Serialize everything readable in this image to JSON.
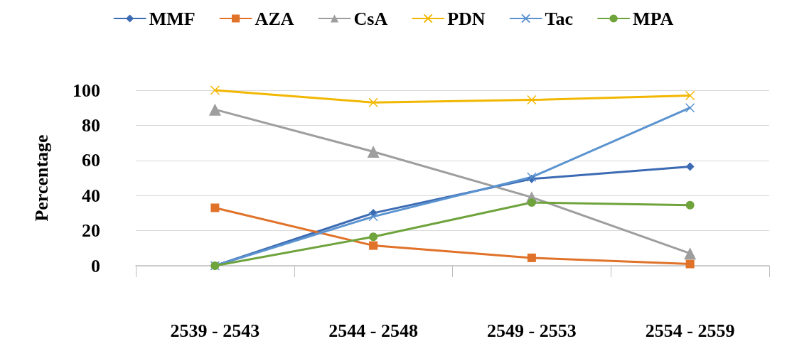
{
  "chart_data": {
    "type": "line",
    "ylabel": "Percentage",
    "categories": [
      "2539 - 2543",
      "2544 - 2548",
      "2549 - 2553",
      "2554 - 2559"
    ],
    "series": [
      {
        "name": "MMF",
        "color": "#3d6bb3",
        "marker": "diamond",
        "values": [
          0,
          30,
          49.5,
          56.5
        ]
      },
      {
        "name": "AZA",
        "color": "#e07229",
        "marker": "square",
        "values": [
          33,
          11.5,
          4.5,
          1
        ]
      },
      {
        "name": "CsA",
        "color": "#9e9e9e",
        "marker": "triangle",
        "values": [
          89,
          65,
          39,
          7
        ]
      },
      {
        "name": "PDN",
        "color": "#f2b700",
        "marker": "cross",
        "values": [
          100,
          93,
          94.5,
          97
        ]
      },
      {
        "name": "Tac",
        "color": "#5b93d0",
        "marker": "cross",
        "values": [
          0,
          28,
          50.5,
          90
        ]
      },
      {
        "name": "MPA",
        "color": "#6fa33c",
        "marker": "circle",
        "values": [
          0,
          16.5,
          36,
          34.5
        ]
      }
    ],
    "ylim": [
      0,
      100
    ],
    "yticks": [
      0,
      20,
      40,
      60,
      80,
      100
    ],
    "grid": "y",
    "legend": "top",
    "line_style": "solid"
  }
}
